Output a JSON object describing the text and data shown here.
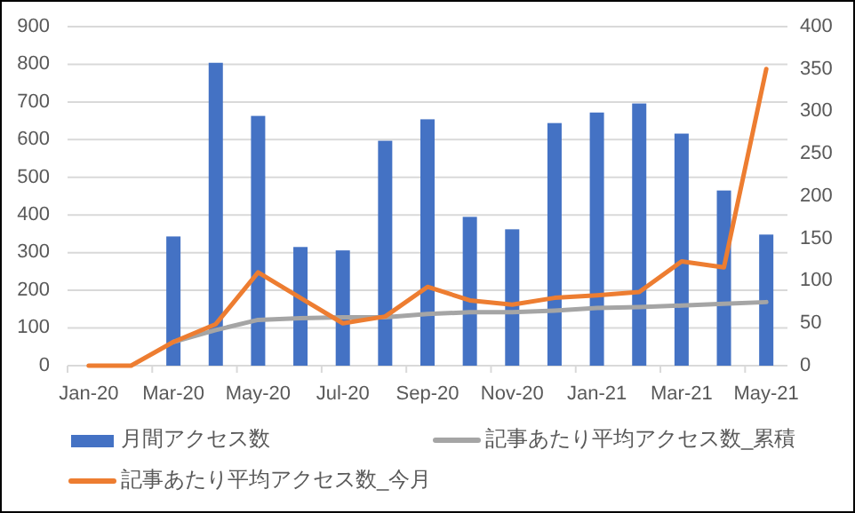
{
  "chart_data": {
    "type": "bar",
    "categories": [
      "Jan-20",
      null,
      "Mar-20",
      null,
      "May-20",
      null,
      "Jul-20",
      null,
      "Sep-20",
      null,
      "Nov-20",
      null,
      "Jan-21",
      null,
      "Mar-21",
      null,
      "May-21"
    ],
    "series": [
      {
        "name": "月間アクセス数",
        "color": "#4472c4",
        "values": [
          0,
          0,
          343,
          804,
          663,
          315,
          306,
          597,
          654,
          395,
          362,
          644,
          672,
          696,
          616,
          465,
          348
        ]
      },
      {
        "name": "記事あたり平均アクセス数_累積",
        "type": "line",
        "axis": "y2",
        "color": "#a5a5a5",
        "values": [
          null,
          null,
          28,
          42,
          54,
          56,
          57,
          57,
          61,
          63,
          63,
          65,
          68,
          69,
          71,
          73,
          75
        ]
      },
      {
        "name": "記事あたり平均アクセス数_今月",
        "type": "line",
        "axis": "y2",
        "color": "#ed7d31",
        "values": [
          0,
          0,
          28,
          49,
          110,
          80,
          50,
          58,
          93,
          77,
          72,
          80,
          83,
          87,
          123,
          116,
          350
        ]
      }
    ],
    "ylim": [
      0,
      900
    ],
    "yticks": [
      0,
      100,
      200,
      300,
      400,
      500,
      600,
      700,
      800,
      900
    ],
    "y2lim": [
      0,
      400
    ],
    "y2ticks": [
      0,
      50,
      100,
      150,
      200,
      250,
      300,
      350,
      400
    ],
    "grid": "y",
    "legend": "bottom"
  }
}
